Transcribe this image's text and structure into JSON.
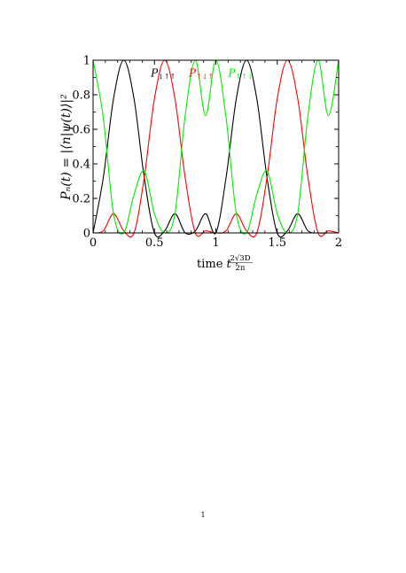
{
  "page": {
    "number": "1"
  },
  "chart_data": {
    "type": "line",
    "xlabel": "time t · 2√3D/2π",
    "xlabel_parts": {
      "lead": "time ",
      "var": "t",
      "dot": " · ",
      "num": "2√3D",
      "den": "2π"
    },
    "ylabel": "Pₙ(t) = |⟨n|ψ(t)⟩|²",
    "xlim": [
      0,
      2
    ],
    "ylim": [
      0,
      1
    ],
    "x_ticks": [
      0,
      0.5,
      1,
      1.5,
      2
    ],
    "x_tick_labels": [
      "0",
      "0.5",
      "1",
      "1.5",
      "2"
    ],
    "y_ticks": [
      0,
      0.2,
      0.4,
      0.6,
      0.8,
      1
    ],
    "y_tick_labels": [
      "0",
      "0.2",
      "0.4",
      "0.6",
      "0.8",
      "1"
    ],
    "grid": false,
    "series": [
      {
        "name": "P↓↑↑",
        "color": "#000000",
        "x": [
          0,
          0.0833,
          0.1667,
          0.25,
          0.3333,
          0.4167,
          0.5,
          0.5833,
          0.6667,
          0.75,
          0.8333,
          0.9167,
          1,
          1.0833,
          1.1667,
          1.25,
          1.3333,
          1.4167,
          1.5,
          1.5833,
          1.6667,
          1.75,
          1.8333,
          1.9167,
          2
        ],
        "y": [
          0,
          0.321,
          0.778,
          1.0,
          0.778,
          0.321,
          0.0,
          0.012,
          0.111,
          0.0,
          0.012,
          0.111,
          0,
          0.321,
          0.778,
          1.0,
          0.778,
          0.321,
          0.0,
          0.012,
          0.111,
          0.012,
          0.0,
          0.0,
          0
        ]
      },
      {
        "name": "P↑↓↑",
        "color": "#ff0000",
        "x": [
          0,
          0.0833,
          0.1667,
          0.25,
          0.3333,
          0.4167,
          0.5,
          0.5833,
          0.6667,
          0.75,
          0.8333,
          0.9167,
          1,
          1.0833,
          1.1667,
          1.25,
          1.3333,
          1.4167,
          1.5,
          1.5833,
          1.6667,
          1.75,
          1.8333,
          1.9167,
          2
        ],
        "y": [
          0,
          0.012,
          0.111,
          0.012,
          0,
          0.321,
          0.778,
          1.0,
          0.778,
          0.321,
          0.0,
          0.012,
          0,
          0.012,
          0.111,
          0.012,
          0,
          0.321,
          0.778,
          1.0,
          0.778,
          0.321,
          0.0,
          0.012,
          0
        ]
      },
      {
        "name": "P↑↑↓",
        "color": "#00ee00",
        "x": [
          0,
          0.0833,
          0.1667,
          0.25,
          0.3333,
          0.4167,
          0.5,
          0.5833,
          0.6667,
          0.75,
          0.8333,
          0.9167,
          1,
          1.0833,
          1.1667,
          1.25,
          1.3333,
          1.4167,
          1.5,
          1.5833,
          1.6667,
          1.75,
          1.8333,
          1.9167,
          2
        ],
        "y": [
          1,
          0.667,
          0.111,
          0.0,
          0.222,
          0.358,
          0.111,
          0.0,
          0.111,
          0.679,
          1.0,
          0.679,
          1,
          0.667,
          0.111,
          0.0,
          0.222,
          0.358,
          0.111,
          0.0,
          0.111,
          0.679,
          1.0,
          0.679,
          1
        ]
      }
    ],
    "annotations": [
      {
        "series": 0,
        "base": "P",
        "sub": "↓↑↑",
        "x": 0.47,
        "y": 0.905
      },
      {
        "series": 1,
        "base": "P",
        "sub": "↑↓↑",
        "x": 0.78,
        "y": 0.905
      },
      {
        "series": 2,
        "base": "P",
        "sub": "↑↑↓",
        "x": 1.1,
        "y": 0.905
      }
    ]
  }
}
